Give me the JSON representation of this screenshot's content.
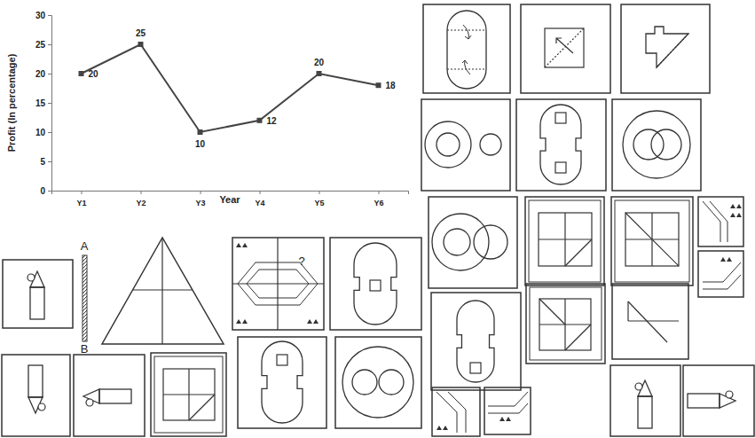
{
  "chart_data": {
    "type": "line",
    "x_label": "Year",
    "y_label": "Profit (In percentage)",
    "categories": [
      "Y1",
      "Y2",
      "Y3",
      "Y4",
      "Y5",
      "Y6"
    ],
    "values": [
      20,
      25,
      10,
      12,
      20,
      18
    ],
    "color": "#444444",
    "marker": "square",
    "ylim": [
      0,
      30
    ],
    "yticks": [
      0,
      5,
      10,
      15,
      20,
      25,
      30
    ],
    "grid": false,
    "data_labels": true
  },
  "figures": {
    "labels": {
      "mirror_top": "A",
      "mirror_bottom": "B",
      "question": "?"
    }
  }
}
